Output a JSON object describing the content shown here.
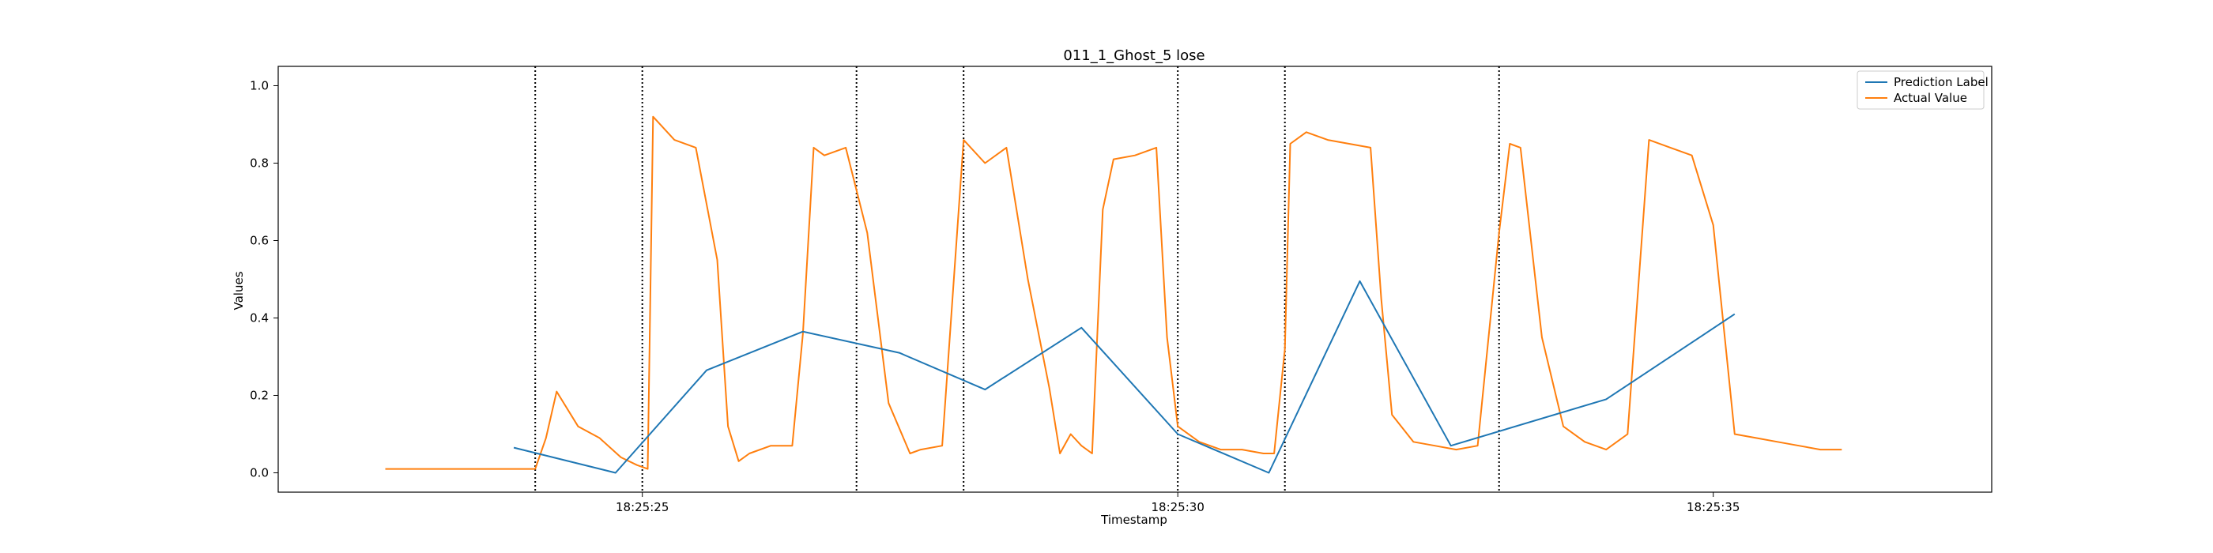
{
  "chart_data": {
    "type": "line",
    "title": "011_1_Ghost_5 lose",
    "xlabel": "Timestamp",
    "ylabel": "Values",
    "xlim": [
      "18:25:21.6",
      "18:25:37.6"
    ],
    "ylim": [
      -0.05,
      1.05
    ],
    "yticks": [
      0.0,
      0.2,
      0.4,
      0.6,
      0.8,
      1.0
    ],
    "ytick_labels": [
      "0.0",
      "0.2",
      "0.4",
      "0.6",
      "0.8",
      "1.0"
    ],
    "xticks": [
      "18:25:25",
      "18:25:30",
      "18:25:35"
    ],
    "grid": false,
    "legend": {
      "position": "top-right",
      "entries": [
        "Prediction Label",
        "Actual Value"
      ]
    },
    "colors": {
      "prediction": "#1f77b4",
      "actual": "#ff7f0e",
      "vline": "#000000"
    },
    "vlines": [
      "18:25:24.0",
      "18:25:25.0",
      "18:25:27.0",
      "18:25:28.0",
      "18:25:30.0",
      "18:25:31.0",
      "18:25:33.0"
    ],
    "series": [
      {
        "name": "Prediction Label",
        "x": [
          "18:25:23.8",
          "18:25:24.75",
          "18:25:25.6",
          "18:25:26.5",
          "18:25:27.4",
          "18:25:28.2",
          "18:25:29.1",
          "18:25:30.0",
          "18:25:30.85",
          "18:25:31.7",
          "18:25:32.55",
          "18:25:34.0",
          "18:25:35.2"
        ],
        "y": [
          0.065,
          0.0,
          0.265,
          0.365,
          0.31,
          0.215,
          0.375,
          0.1,
          0.0,
          0.495,
          0.07,
          0.19,
          0.41
        ]
      },
      {
        "name": "Actual Value",
        "x": [
          "18:25:22.6",
          "18:25:23.0",
          "18:25:23.5",
          "18:25:24.0",
          "18:25:24.1",
          "18:25:24.2",
          "18:25:24.4",
          "18:25:24.6",
          "18:25:24.8",
          "18:25:24.95",
          "18:25:25.05",
          "18:25:25.1",
          "18:25:25.3",
          "18:25:25.5",
          "18:25:25.7",
          "18:25:25.8",
          "18:25:25.9",
          "18:25:26.0",
          "18:25:26.2",
          "18:25:26.4",
          "18:25:26.5",
          "18:25:26.6",
          "18:25:26.7",
          "18:25:26.9",
          "18:25:27.1",
          "18:25:27.3",
          "18:25:27.5",
          "18:25:27.6",
          "18:25:27.8",
          "18:25:28.0",
          "18:25:28.2",
          "18:25:28.4",
          "18:25:28.6",
          "18:25:28.8",
          "18:25:28.9",
          "18:25:29.0",
          "18:25:29.1",
          "18:25:29.2",
          "18:25:29.3",
          "18:25:29.4",
          "18:25:29.6",
          "18:25:29.8",
          "18:25:29.9",
          "18:25:30.0",
          "18:25:30.2",
          "18:25:30.4",
          "18:25:30.6",
          "18:25:30.8",
          "18:25:30.9",
          "18:25:31.0",
          "18:25:31.05",
          "18:25:31.2",
          "18:25:31.4",
          "18:25:31.6",
          "18:25:31.8",
          "18:25:31.9",
          "18:25:32.0",
          "18:25:32.2",
          "18:25:32.4",
          "18:25:32.6",
          "18:25:32.8",
          "18:25:33.0",
          "18:25:33.1",
          "18:25:33.2",
          "18:25:33.4",
          "18:25:33.6",
          "18:25:33.8",
          "18:25:34.0",
          "18:25:34.2",
          "18:25:34.4",
          "18:25:34.6",
          "18:25:34.8",
          "18:25:35.0",
          "18:25:35.2",
          "18:25:35.4",
          "18:25:35.6",
          "18:25:35.8",
          "18:25:36.0",
          "18:25:36.2"
        ],
        "y": [
          0.01,
          0.01,
          0.01,
          0.01,
          0.09,
          0.21,
          0.12,
          0.09,
          0.04,
          0.02,
          0.01,
          0.92,
          0.86,
          0.84,
          0.55,
          0.12,
          0.03,
          0.05,
          0.07,
          0.07,
          0.36,
          0.84,
          0.82,
          0.84,
          0.62,
          0.18,
          0.05,
          0.06,
          0.07,
          0.86,
          0.8,
          0.84,
          0.5,
          0.22,
          0.05,
          0.1,
          0.07,
          0.05,
          0.68,
          0.81,
          0.82,
          0.84,
          0.35,
          0.12,
          0.08,
          0.06,
          0.06,
          0.05,
          0.05,
          0.32,
          0.85,
          0.88,
          0.86,
          0.85,
          0.84,
          0.45,
          0.15,
          0.08,
          0.07,
          0.06,
          0.07,
          0.62,
          0.85,
          0.84,
          0.35,
          0.12,
          0.08,
          0.06,
          0.1,
          0.86,
          0.84,
          0.82,
          0.64,
          0.1,
          0.09,
          0.08,
          0.07,
          0.06,
          0.06
        ]
      }
    ]
  }
}
